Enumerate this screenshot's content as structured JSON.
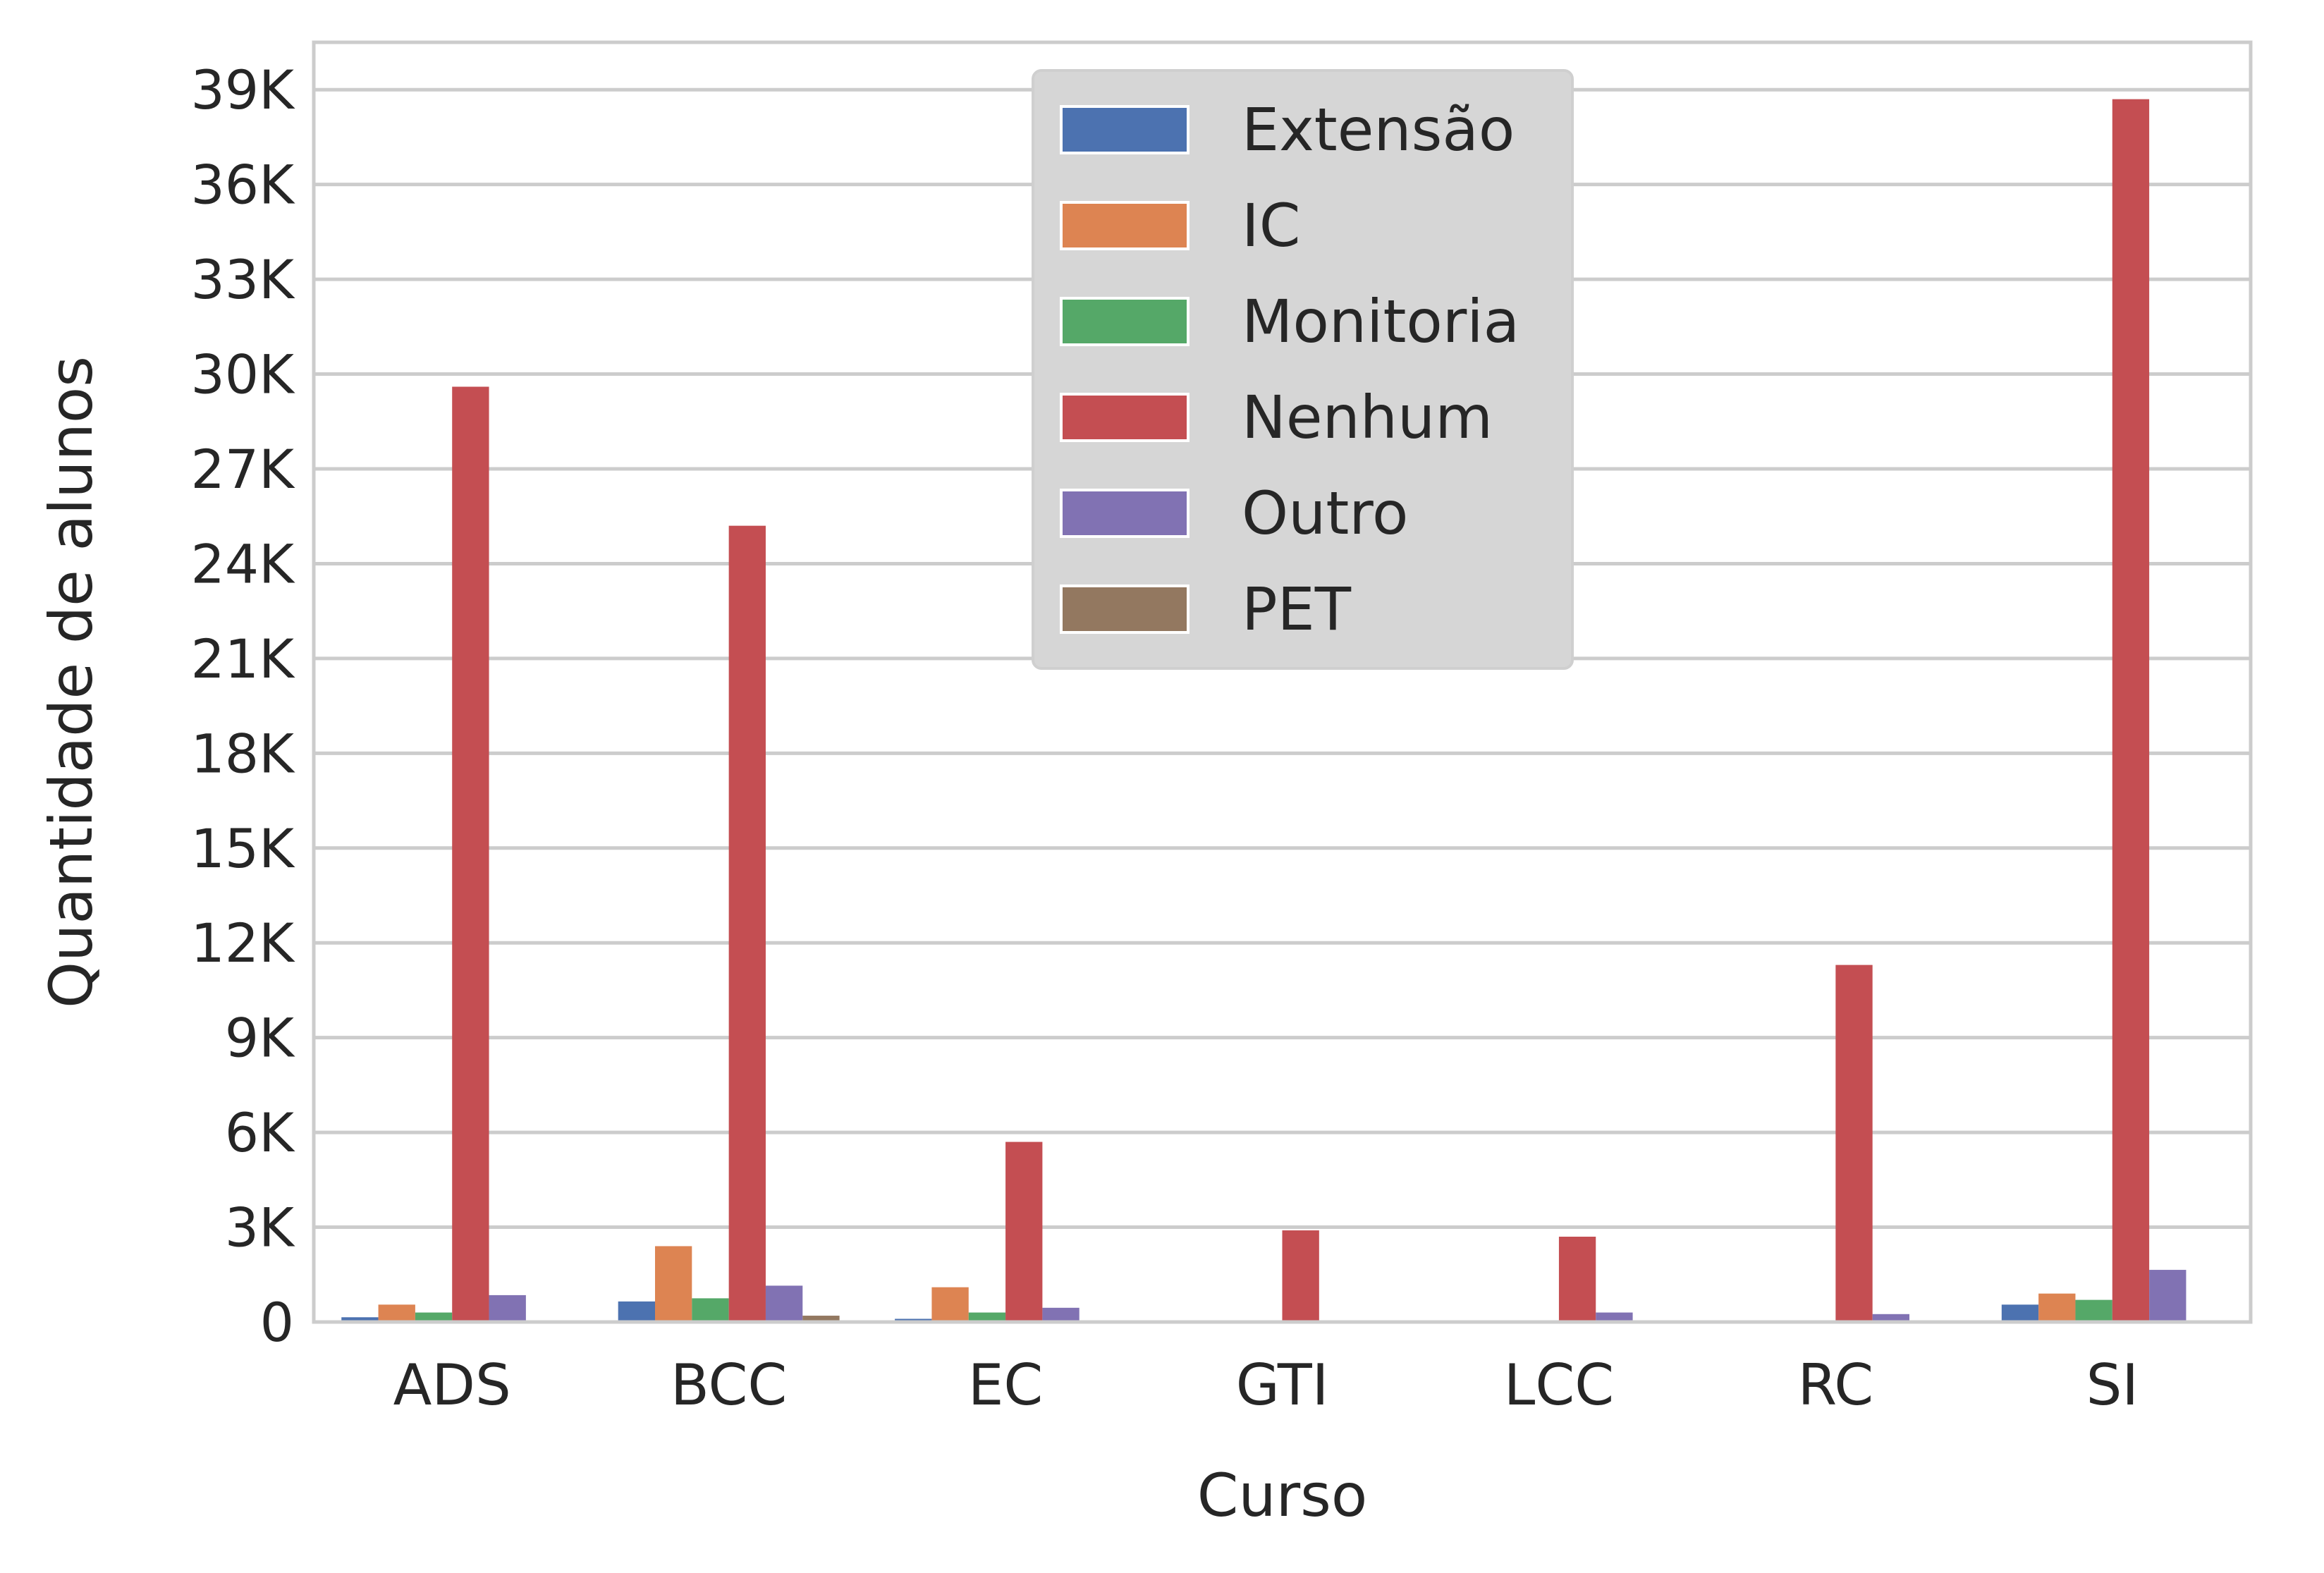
{
  "chart_data": {
    "type": "bar",
    "xlabel": "Curso",
    "ylabel": "Quantidade de alunos",
    "categories": [
      "ADS",
      "BCC",
      "EC",
      "GTI",
      "LCC",
      "RC",
      "SI"
    ],
    "ylim": [
      0,
      40500
    ],
    "yticks": [
      0,
      3000,
      6000,
      9000,
      12000,
      15000,
      18000,
      21000,
      24000,
      27000,
      30000,
      33000,
      36000,
      39000
    ],
    "ytick_labels": [
      "0",
      "3K",
      "6K",
      "9K",
      "12K",
      "15K",
      "18K",
      "21K",
      "24K",
      "27K",
      "30K",
      "33K",
      "36K",
      "39K"
    ],
    "grid": true,
    "legend_position": "top-center",
    "series": [
      {
        "name": "Extensão",
        "color": "#4c72b0",
        "values": [
          150,
          650,
          100,
          0,
          0,
          0,
          550
        ]
      },
      {
        "name": "IC",
        "color": "#dd8452",
        "values": [
          550,
          2400,
          1100,
          0,
          0,
          0,
          900
        ]
      },
      {
        "name": "Monitoria",
        "color": "#55a868",
        "values": [
          300,
          750,
          300,
          0,
          0,
          0,
          700
        ]
      },
      {
        "name": "Nenhum",
        "color": "#c44e52",
        "values": [
          29600,
          25200,
          5700,
          2900,
          2700,
          11300,
          38700
        ]
      },
      {
        "name": "Outro",
        "color": "#8172b3",
        "values": [
          850,
          1150,
          450,
          0,
          300,
          250,
          1650
        ]
      },
      {
        "name": "PET",
        "color": "#937860",
        "values": [
          0,
          200,
          0,
          0,
          0,
          0,
          0
        ]
      }
    ]
  }
}
